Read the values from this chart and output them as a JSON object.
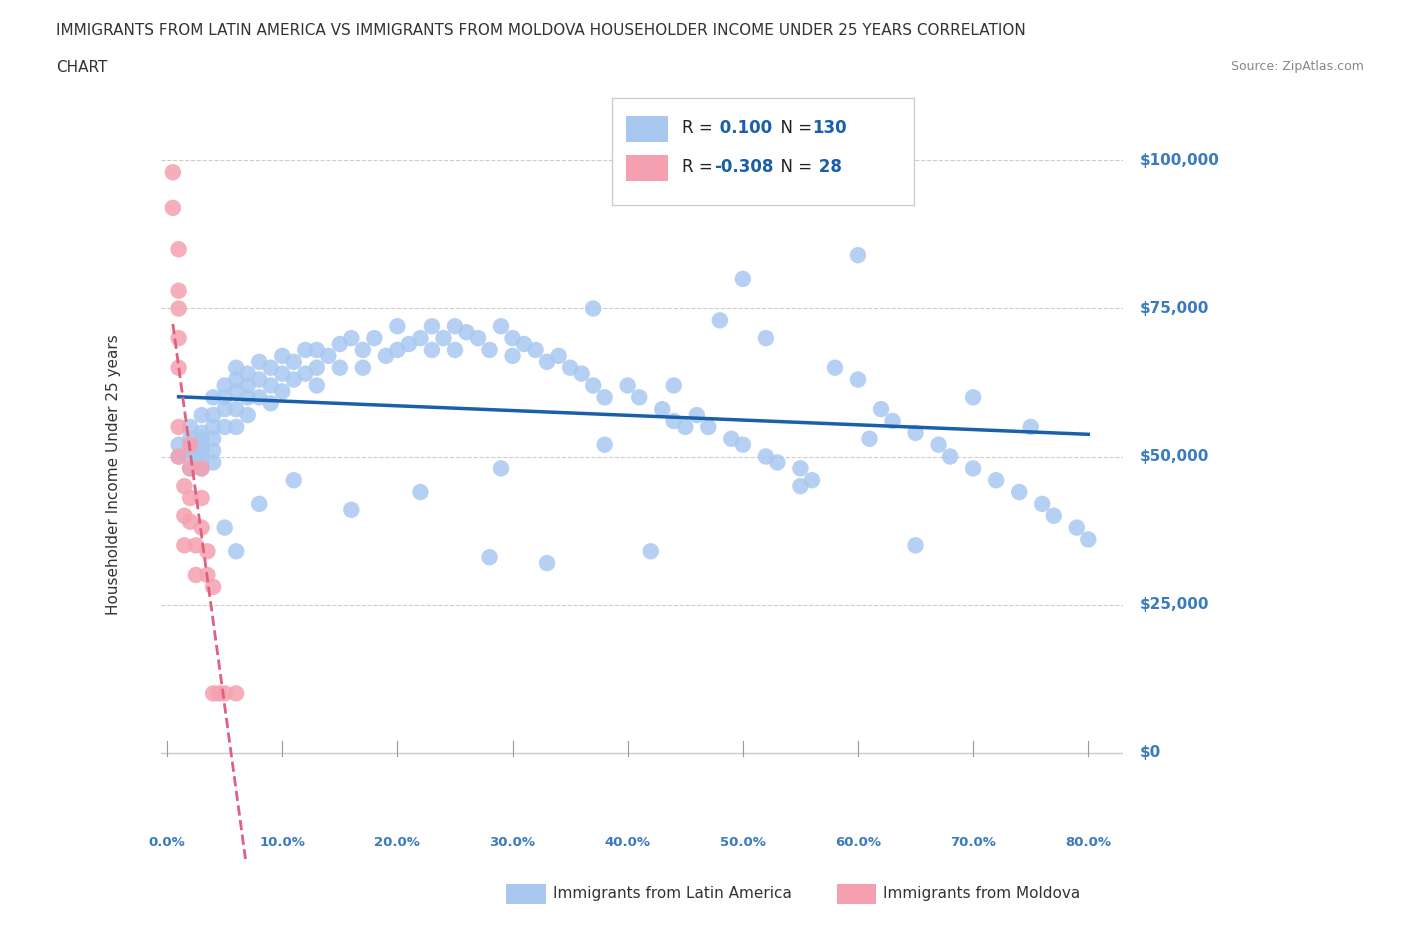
{
  "title_line1": "IMMIGRANTS FROM LATIN AMERICA VS IMMIGRANTS FROM MOLDOVA HOUSEHOLDER INCOME UNDER 25 YEARS CORRELATION",
  "title_line2": "CHART",
  "source_text": "Source: ZipAtlas.com",
  "ylabel_left": "Householder Income Under 25 years",
  "legend_label_1": "Immigrants from Latin America",
  "legend_label_2": "Immigrants from Moldova",
  "r1": 0.1,
  "n1": 130,
  "r2": -0.308,
  "n2": 28,
  "color_blue": "#a8c8f0",
  "color_blue_line": "#1a5faa",
  "color_pink": "#f5a0b0",
  "color_pink_line": "#e06080",
  "color_axis_labels": "#3a7abf",
  "background_color": "#ffffff",
  "yticks": [
    0,
    25000,
    50000,
    75000,
    100000
  ],
  "xticks": [
    0.0,
    0.1,
    0.2,
    0.3,
    0.4,
    0.5,
    0.6,
    0.7,
    0.8
  ],
  "latin_x": [
    0.01,
    0.01,
    0.02,
    0.02,
    0.02,
    0.02,
    0.02,
    0.03,
    0.03,
    0.03,
    0.03,
    0.03,
    0.03,
    0.03,
    0.03,
    0.04,
    0.04,
    0.04,
    0.04,
    0.04,
    0.04,
    0.05,
    0.05,
    0.05,
    0.05,
    0.06,
    0.06,
    0.06,
    0.06,
    0.06,
    0.07,
    0.07,
    0.07,
    0.07,
    0.08,
    0.08,
    0.08,
    0.09,
    0.09,
    0.09,
    0.1,
    0.1,
    0.1,
    0.11,
    0.11,
    0.12,
    0.12,
    0.13,
    0.13,
    0.13,
    0.14,
    0.15,
    0.15,
    0.16,
    0.17,
    0.17,
    0.18,
    0.19,
    0.2,
    0.2,
    0.21,
    0.22,
    0.23,
    0.23,
    0.24,
    0.25,
    0.25,
    0.26,
    0.27,
    0.28,
    0.29,
    0.3,
    0.3,
    0.31,
    0.32,
    0.33,
    0.34,
    0.35,
    0.36,
    0.37,
    0.38,
    0.4,
    0.41,
    0.43,
    0.44,
    0.45,
    0.46,
    0.47,
    0.49,
    0.5,
    0.52,
    0.53,
    0.55,
    0.56,
    0.58,
    0.6,
    0.62,
    0.63,
    0.65,
    0.67,
    0.68,
    0.7,
    0.72,
    0.74,
    0.76,
    0.77,
    0.79,
    0.8,
    0.65,
    0.42,
    0.28,
    0.33,
    0.5,
    0.6,
    0.37,
    0.44,
    0.52,
    0.48,
    0.55,
    0.61,
    0.7,
    0.75,
    0.38,
    0.29,
    0.22,
    0.16,
    0.11,
    0.08,
    0.05,
    0.06
  ],
  "latin_y": [
    52000,
    50000,
    55000,
    53000,
    48000,
    51000,
    50000,
    57000,
    54000,
    52000,
    49000,
    53000,
    51000,
    50000,
    48000,
    60000,
    57000,
    55000,
    53000,
    51000,
    49000,
    62000,
    60000,
    58000,
    55000,
    65000,
    63000,
    61000,
    58000,
    55000,
    64000,
    62000,
    60000,
    57000,
    66000,
    63000,
    60000,
    65000,
    62000,
    59000,
    67000,
    64000,
    61000,
    66000,
    63000,
    68000,
    64000,
    68000,
    65000,
    62000,
    67000,
    69000,
    65000,
    70000,
    68000,
    65000,
    70000,
    67000,
    72000,
    68000,
    69000,
    70000,
    72000,
    68000,
    70000,
    72000,
    68000,
    71000,
    70000,
    68000,
    72000,
    70000,
    67000,
    69000,
    68000,
    66000,
    67000,
    65000,
    64000,
    62000,
    60000,
    62000,
    60000,
    58000,
    56000,
    55000,
    57000,
    55000,
    53000,
    52000,
    50000,
    49000,
    48000,
    46000,
    65000,
    63000,
    58000,
    56000,
    54000,
    52000,
    50000,
    48000,
    46000,
    44000,
    42000,
    40000,
    38000,
    36000,
    35000,
    34000,
    33000,
    32000,
    80000,
    84000,
    75000,
    62000,
    70000,
    73000,
    45000,
    53000,
    60000,
    55000,
    52000,
    48000,
    44000,
    41000,
    46000,
    42000,
    38000,
    34000
  ],
  "moldova_x": [
    0.005,
    0.005,
    0.01,
    0.01,
    0.01,
    0.01,
    0.01,
    0.01,
    0.01,
    0.015,
    0.015,
    0.015,
    0.02,
    0.02,
    0.02,
    0.02,
    0.025,
    0.025,
    0.03,
    0.03,
    0.03,
    0.035,
    0.035,
    0.04,
    0.04,
    0.045,
    0.05,
    0.06
  ],
  "moldova_y": [
    98000,
    92000,
    85000,
    78000,
    75000,
    70000,
    65000,
    55000,
    50000,
    45000,
    40000,
    35000,
    52000,
    48000,
    43000,
    39000,
    35000,
    30000,
    48000,
    43000,
    38000,
    34000,
    30000,
    28000,
    10000,
    10000,
    10000,
    10000
  ]
}
